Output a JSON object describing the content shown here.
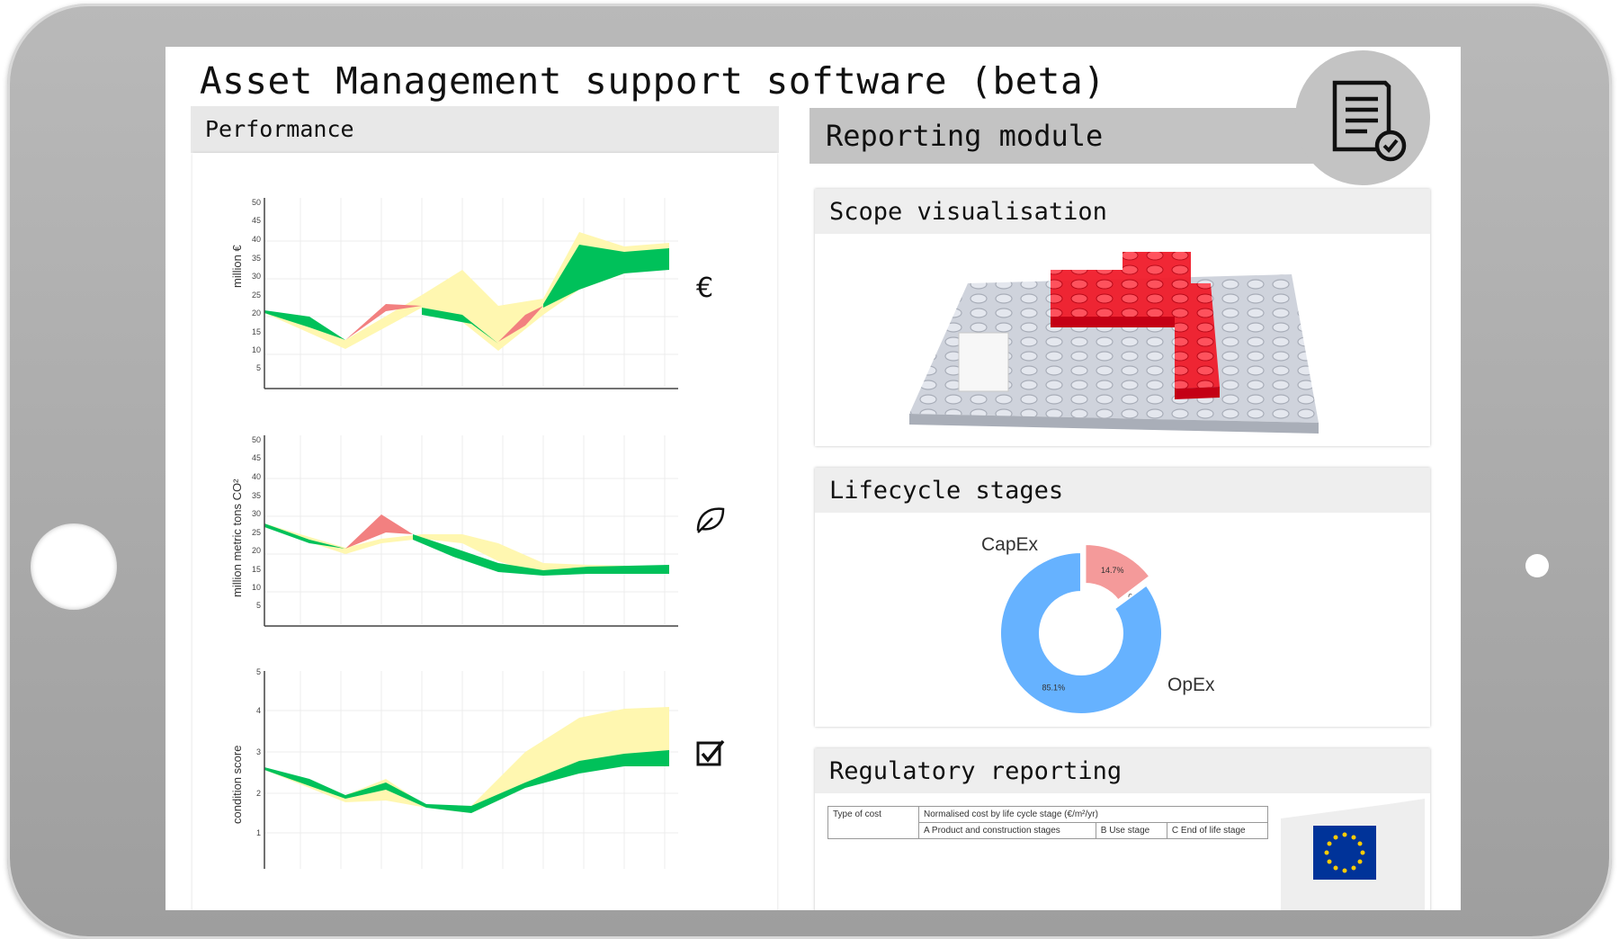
{
  "app": {
    "title": "Asset Management support software (beta)"
  },
  "performance": {
    "header": "Performance",
    "charts": [
      {
        "ylabel": "million €",
        "icon": "euro-icon",
        "ylim": [
          0,
          50
        ],
        "yticks": [
          "5",
          "10",
          "15",
          "20",
          "25",
          "30",
          "35",
          "40",
          "45",
          "50"
        ]
      },
      {
        "ylabel": "million metric tons CO²",
        "icon": "leaf-icon",
        "ylim": [
          0,
          50
        ],
        "yticks": [
          "5",
          "10",
          "15",
          "20",
          "25",
          "30",
          "35",
          "40",
          "45",
          "50"
        ]
      },
      {
        "ylabel": "condition score",
        "icon": "checkbox-icon",
        "ylim": [
          0,
          5
        ],
        "yticks": [
          "1",
          "2",
          "3",
          "4",
          "5"
        ]
      }
    ]
  },
  "reporting": {
    "title": "Reporting module",
    "icon": "report-check-icon",
    "scope": {
      "title": "Scope visualisation"
    },
    "lifecycle": {
      "title": "Lifecycle stages",
      "chart_data": {
        "type": "pie",
        "slices": [
          {
            "label": "CapEx",
            "value": 14.7,
            "value_label": "14.7%",
            "color": "#f49a9a"
          },
          {
            "label": "",
            "value": 0.2,
            "value_label": "0.2%",
            "color": "#d0d0d0"
          },
          {
            "label": "OpEx",
            "value": 85.1,
            "value_label": "85.1%",
            "color": "#66b2ff"
          }
        ]
      }
    },
    "regulatory": {
      "title": "Regulatory reporting",
      "table": {
        "col1": "Type of cost",
        "col2": "Normalised cost by life cycle stage (€/m²/yr)",
        "sub": [
          "A Product and construction stages",
          "B Use stage",
          "C End of life stage"
        ]
      }
    }
  },
  "colors": {
    "good": "#00c15a",
    "bad": "#f28080",
    "band": "#fff7b0",
    "pie_capex": "#f49a9a",
    "pie_opex": "#66b2ff"
  }
}
